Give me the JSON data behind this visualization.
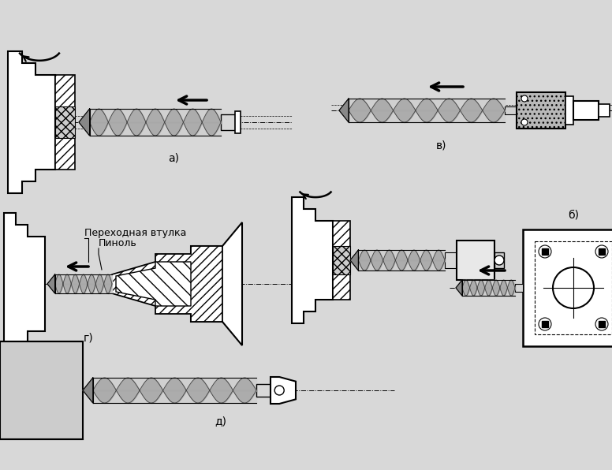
{
  "bg_color": "#d8d8d8",
  "labels": {
    "a": "а)",
    "b": "б)",
    "v": "в)",
    "g": "г)",
    "d": "д)",
    "perehodnaya": "Переходная втулка",
    "pinol": "Пиноль"
  },
  "label_fontsize": 10
}
